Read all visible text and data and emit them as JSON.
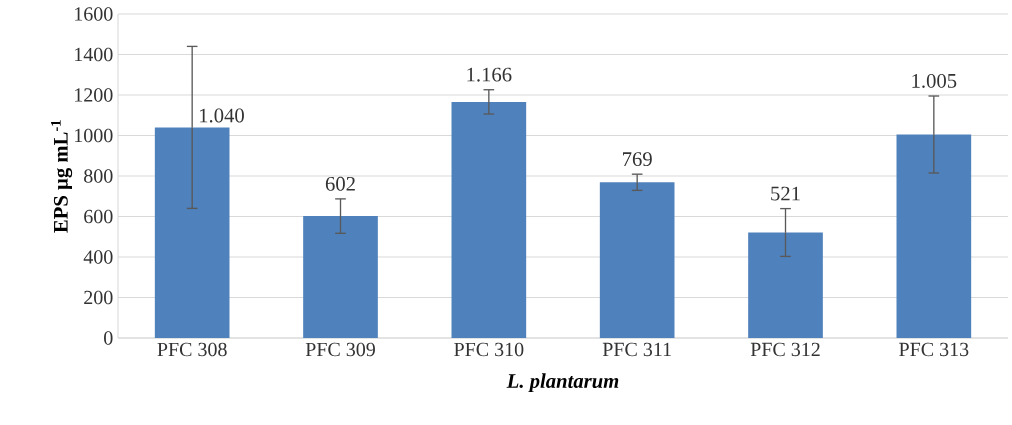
{
  "chart_data": {
    "type": "bar",
    "xlabel": "L. plantarum",
    "ylabel": "EPS µg mL$^{-1}$",
    "categories": [
      "PFC 308",
      "PFC 309",
      "PFC 310",
      "PFC 311",
      "PFC 312",
      "PFC 313"
    ],
    "values": [
      1040,
      602,
      1166,
      769,
      521,
      1005
    ],
    "errors": [
      400,
      85,
      60,
      40,
      118,
      190
    ],
    "value_labels": [
      "1.040",
      "602",
      "1.166",
      "769",
      "521",
      "1.005"
    ],
    "color": "#4f81bd",
    "ylim": [
      0,
      1600
    ],
    "yticks": [
      0,
      200,
      400,
      600,
      800,
      1000,
      1200,
      1400,
      1600
    ],
    "grid": "y"
  }
}
